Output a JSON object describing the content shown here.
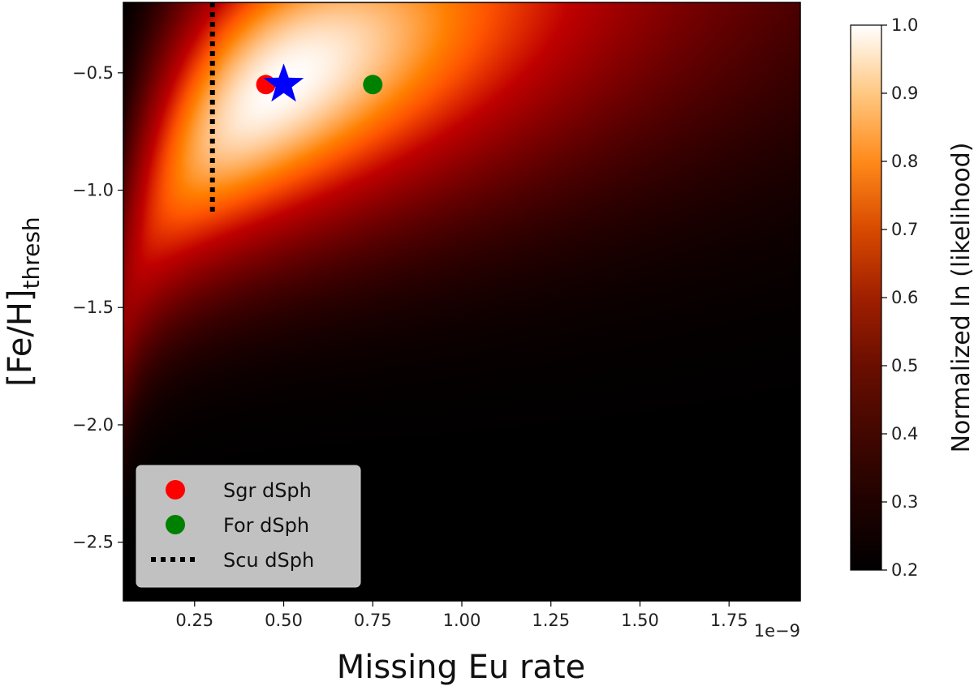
{
  "chart_data": {
    "type": "heatmap",
    "xlabel": "Missing Eu rate",
    "x_offset_label": "1e−9",
    "ylabel_main": "[Fe/H]",
    "ylabel_sub": "thresh",
    "xlim": [
      0.05,
      1.95
    ],
    "ylim": [
      -2.75,
      -0.2
    ],
    "x_ticks": [
      0.25,
      0.5,
      0.75,
      1.0,
      1.25,
      1.5,
      1.75
    ],
    "x_tick_labels": [
      "0.25",
      "0.50",
      "0.75",
      "1.00",
      "1.25",
      "1.50",
      "1.75"
    ],
    "y_ticks": [
      -0.5,
      -1.0,
      -1.5,
      -2.0,
      -2.5
    ],
    "y_tick_labels": [
      "−0.5",
      "−1.0",
      "−1.5",
      "−2.0",
      "−2.5"
    ],
    "colorbar": {
      "label": "Normalized ln (likelihood)",
      "range": [
        0.2,
        1.0
      ],
      "ticks": [
        0.2,
        0.3,
        0.4,
        0.5,
        0.6,
        0.7,
        0.8,
        0.9,
        1.0
      ],
      "tick_labels": [
        "0.2",
        "0.3",
        "0.4",
        "0.5",
        "0.6",
        "0.7",
        "0.8",
        "0.9",
        "1.0"
      ],
      "colormap": "gist_heat"
    },
    "heatmap_peak": {
      "x": 0.5,
      "y": -0.55,
      "value": 1.0
    },
    "markers": [
      {
        "name": "best-fit",
        "shape": "star",
        "x": 0.5,
        "y": -0.55,
        "color": "#0000ff"
      },
      {
        "name": "Sgr dSph",
        "shape": "circle",
        "x": 0.45,
        "y": -0.55,
        "color": "#ff0000"
      },
      {
        "name": "For dSph",
        "shape": "circle",
        "x": 0.75,
        "y": -0.55,
        "color": "#008000"
      }
    ],
    "scu_line": {
      "x": 0.3,
      "y_from": -0.2,
      "y_to": -1.1,
      "style": "dotted",
      "color": "#000000"
    },
    "legend": {
      "position": "lower-left",
      "entries": [
        {
          "label": "Sgr dSph",
          "marker": "circle",
          "color": "#ff0000"
        },
        {
          "label": "For dSph",
          "marker": "circle",
          "color": "#008000"
        },
        {
          "label": "Scu dSph",
          "marker": "dotted-line",
          "color": "#000000"
        }
      ]
    }
  }
}
